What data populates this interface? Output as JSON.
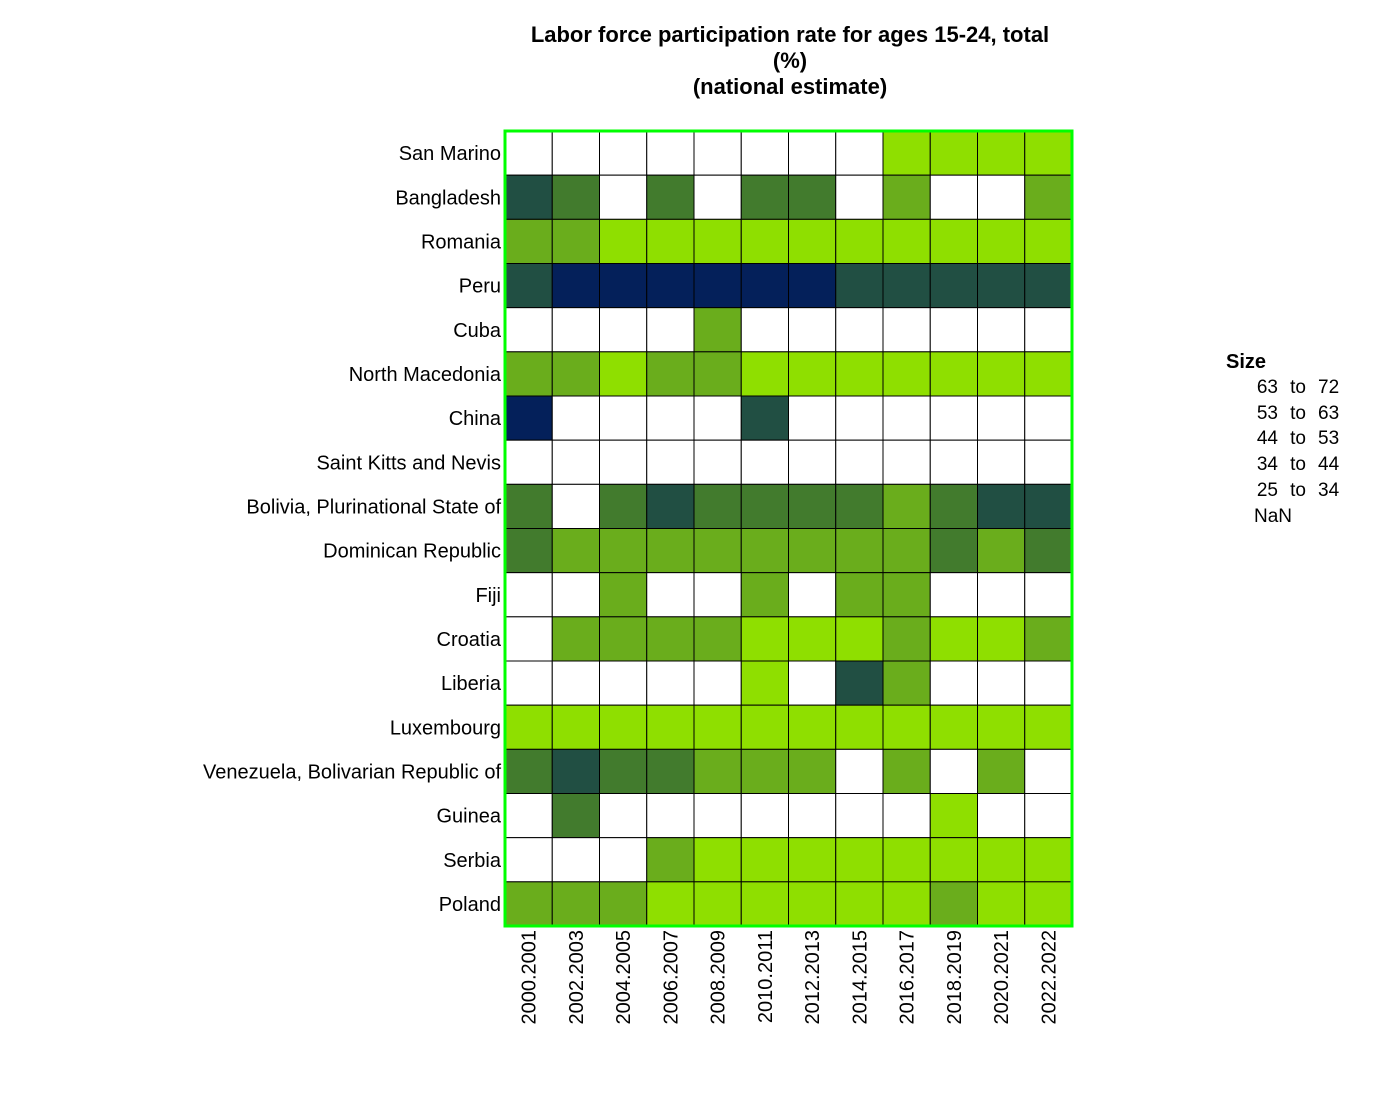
{
  "chart_data": {
    "type": "heatmap",
    "title_lines": [
      "Labor force participation rate for ages 15-24, total",
      "(%)",
      "(national estimate)"
    ],
    "xlabel": "",
    "ylabel": "",
    "grid": true,
    "legend_position": "right",
    "x_categories": [
      "2000.2001",
      "2002.2003",
      "2004.2005",
      "2006.2007",
      "2008.2009",
      "2010.2011",
      "2012.2013",
      "2014.2015",
      "2016.2017",
      "2018.2019",
      "2020.2021",
      "2022.2022"
    ],
    "y_categories": [
      "San Marino",
      "Bangladesh",
      "Romania",
      "Peru",
      "Cuba",
      "North Macedonia",
      "China",
      "Saint Kitts and Nevis",
      "Bolivia, Plurinational State of",
      "Dominican Republic",
      "Fiji",
      "Croatia",
      "Liberia",
      "Luxembourg",
      "Venezuela, Bolivarian Republic of",
      "Guinea",
      "Serbia",
      "Poland"
    ],
    "bins": [
      {
        "label": "63 to 72",
        "from": "63",
        "to_word": "to",
        "upto": "72",
        "color": "#04205a"
      },
      {
        "label": "53 to 63",
        "from": "53",
        "to_word": "to",
        "upto": "63",
        "color": "#214f43"
      },
      {
        "label": "44 to 53",
        "from": "44",
        "to_word": "to",
        "upto": "53",
        "color": "#427b2d"
      },
      {
        "label": "34 to 44",
        "from": "34",
        "to_word": "to",
        "upto": "44",
        "color": "#6aad1c"
      },
      {
        "label": "25 to 34",
        "from": "25",
        "to_word": "to",
        "upto": "34",
        "color": "#8fdf00"
      },
      {
        "label": "NaN",
        "from": "",
        "to_word": "",
        "upto": "",
        "nan_label": "NaN",
        "color": "#ffffff"
      }
    ],
    "matrix_bins": [
      [
        "NaN",
        "NaN",
        "NaN",
        "NaN",
        "NaN",
        "NaN",
        "NaN",
        "NaN",
        "25 to 34",
        "25 to 34",
        "25 to 34",
        "25 to 34"
      ],
      [
        "53 to 63",
        "44 to 53",
        "NaN",
        "44 to 53",
        "NaN",
        "44 to 53",
        "44 to 53",
        "NaN",
        "34 to 44",
        "NaN",
        "NaN",
        "34 to 44"
      ],
      [
        "34 to 44",
        "34 to 44",
        "25 to 34",
        "25 to 34",
        "25 to 34",
        "25 to 34",
        "25 to 34",
        "25 to 34",
        "25 to 34",
        "25 to 34",
        "25 to 34",
        "25 to 34"
      ],
      [
        "53 to 63",
        "63 to 72",
        "63 to 72",
        "63 to 72",
        "63 to 72",
        "63 to 72",
        "63 to 72",
        "53 to 63",
        "53 to 63",
        "53 to 63",
        "53 to 63",
        "53 to 63"
      ],
      [
        "NaN",
        "NaN",
        "NaN",
        "NaN",
        "34 to 44",
        "NaN",
        "NaN",
        "NaN",
        "NaN",
        "NaN",
        "NaN",
        "NaN"
      ],
      [
        "34 to 44",
        "34 to 44",
        "25 to 34",
        "34 to 44",
        "34 to 44",
        "25 to 34",
        "25 to 34",
        "25 to 34",
        "25 to 34",
        "25 to 34",
        "25 to 34",
        "25 to 34"
      ],
      [
        "63 to 72",
        "NaN",
        "NaN",
        "NaN",
        "NaN",
        "53 to 63",
        "NaN",
        "NaN",
        "NaN",
        "NaN",
        "NaN",
        "NaN"
      ],
      [
        "NaN",
        "NaN",
        "NaN",
        "NaN",
        "NaN",
        "NaN",
        "NaN",
        "NaN",
        "NaN",
        "NaN",
        "NaN",
        "NaN"
      ],
      [
        "44 to 53",
        "NaN",
        "44 to 53",
        "53 to 63",
        "44 to 53",
        "44 to 53",
        "44 to 53",
        "44 to 53",
        "34 to 44",
        "44 to 53",
        "53 to 63",
        "53 to 63"
      ],
      [
        "44 to 53",
        "34 to 44",
        "34 to 44",
        "34 to 44",
        "34 to 44",
        "34 to 44",
        "34 to 44",
        "34 to 44",
        "34 to 44",
        "44 to 53",
        "34 to 44",
        "44 to 53"
      ],
      [
        "NaN",
        "NaN",
        "34 to 44",
        "NaN",
        "NaN",
        "34 to 44",
        "NaN",
        "34 to 44",
        "34 to 44",
        "NaN",
        "NaN",
        "NaN"
      ],
      [
        "NaN",
        "34 to 44",
        "34 to 44",
        "34 to 44",
        "34 to 44",
        "25 to 34",
        "25 to 34",
        "25 to 34",
        "34 to 44",
        "25 to 34",
        "25 to 34",
        "34 to 44"
      ],
      [
        "NaN",
        "NaN",
        "NaN",
        "NaN",
        "NaN",
        "25 to 34",
        "NaN",
        "53 to 63",
        "34 to 44",
        "NaN",
        "NaN",
        "NaN"
      ],
      [
        "25 to 34",
        "25 to 34",
        "25 to 34",
        "25 to 34",
        "25 to 34",
        "25 to 34",
        "25 to 34",
        "25 to 34",
        "25 to 34",
        "25 to 34",
        "25 to 34",
        "25 to 34"
      ],
      [
        "44 to 53",
        "53 to 63",
        "44 to 53",
        "44 to 53",
        "34 to 44",
        "34 to 44",
        "34 to 44",
        "NaN",
        "34 to 44",
        "NaN",
        "34 to 44",
        "NaN"
      ],
      [
        "NaN",
        "44 to 53",
        "NaN",
        "NaN",
        "NaN",
        "NaN",
        "NaN",
        "NaN",
        "NaN",
        "25 to 34",
        "NaN",
        "NaN"
      ],
      [
        "NaN",
        "NaN",
        "NaN",
        "34 to 44",
        "25 to 34",
        "25 to 34",
        "25 to 34",
        "25 to 34",
        "25 to 34",
        "25 to 34",
        "25 to 34",
        "25 to 34"
      ],
      [
        "34 to 44",
        "34 to 44",
        "34 to 44",
        "25 to 34",
        "25 to 34",
        "25 to 34",
        "25 to 34",
        "25 to 34",
        "25 to 34",
        "34 to 44",
        "25 to 34",
        "25 to 34"
      ]
    ]
  },
  "legend": {
    "title": "Size"
  },
  "colors": {
    "panel_border": "#00ff00",
    "cell_border": "#000000"
  }
}
